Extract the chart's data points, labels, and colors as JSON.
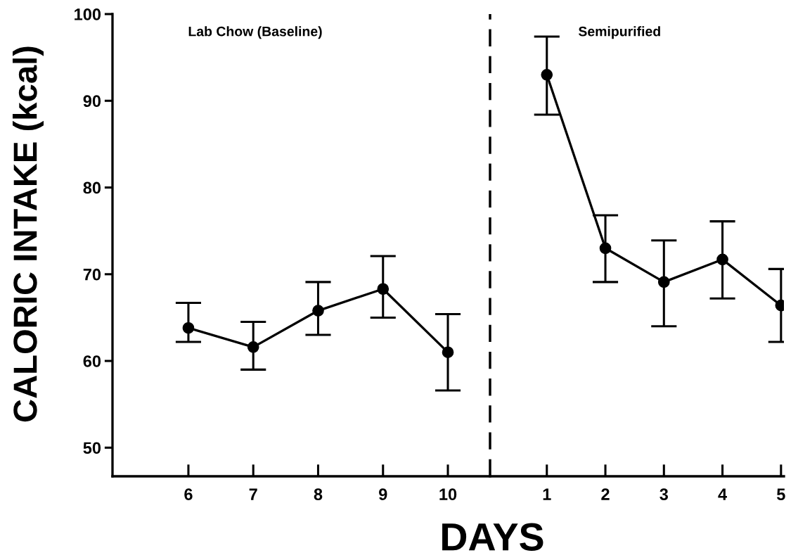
{
  "chart_data": [
    {
      "type": "line",
      "xlabel": "DAYS",
      "ylabel": "CALORIC INTAKE (kcal)",
      "annotations": [
        "Lab Chow (Baseline)"
      ],
      "x": [
        6,
        7,
        8,
        9,
        10
      ],
      "xlim": [
        4.83,
        10.65
      ],
      "xticks": [
        6,
        7,
        8,
        9,
        10
      ],
      "ylim": [
        46.7,
        100
      ],
      "yticks": [
        50,
        60,
        70,
        80,
        90,
        100
      ],
      "series": [
        {
          "color": "#000000",
          "values": [
            63.8,
            61.6,
            65.8,
            68.3,
            61.0
          ],
          "errors": [
            [
              62.2,
              66.7
            ],
            [
              59.0,
              64.5
            ],
            [
              63.0,
              69.1
            ],
            [
              65.0,
              72.1
            ],
            [
              56.6,
              65.4
            ]
          ]
        }
      ],
      "marker": "circle",
      "line_style": "solid",
      "grid": false,
      "legend": false
    },
    {
      "type": "line",
      "annotations": [
        "Semipurified"
      ],
      "x": [
        1,
        2,
        3,
        4,
        5
      ],
      "xlim": [
        0.03,
        5.05
      ],
      "xticks": [
        1,
        2,
        3,
        4,
        5
      ],
      "ylim": [
        46.7,
        100
      ],
      "tick_labels": "x",
      "series": [
        {
          "color": "#000000",
          "values": [
            93.0,
            73.0,
            69.1,
            71.7,
            66.4
          ],
          "errors": [
            [
              88.4,
              97.4
            ],
            [
              69.1,
              76.8
            ],
            [
              64.0,
              73.9
            ],
            [
              67.2,
              76.1
            ],
            [
              62.2,
              70.6
            ]
          ]
        }
      ],
      "ref_lines": [
        {
          "axis": "x",
          "value": 0.03,
          "color": "#000000",
          "line_style": "dashed"
        }
      ],
      "marker": "circle",
      "line_style": "solid",
      "grid": false,
      "legend": false
    }
  ]
}
